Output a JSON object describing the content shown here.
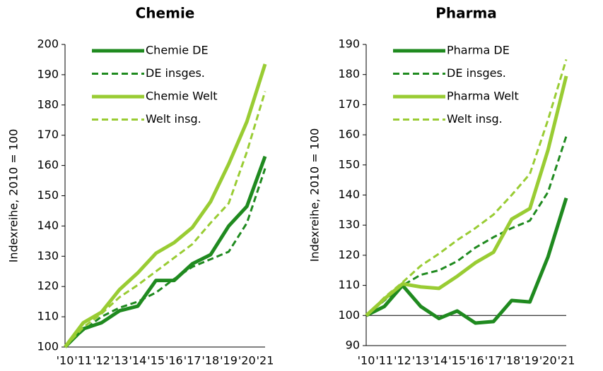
{
  "chart_data": [
    {
      "type": "line",
      "title": "Chemie",
      "ylabel": "Indexreihe, 2010 = 100",
      "categories": [
        "'10",
        "'11",
        "'12",
        "'13",
        "'14",
        "'15",
        "'16",
        "'17",
        "'18",
        "'19",
        "'20",
        "'21"
      ],
      "ylim": [
        100,
        200
      ],
      "yticks": [
        100,
        110,
        120,
        130,
        140,
        150,
        160,
        170,
        180,
        190,
        200
      ],
      "series": [
        {
          "name": "Chemie DE",
          "color": "#1f8a1f",
          "dashed": false,
          "values": [
            100,
            106,
            108,
            112,
            113.5,
            122,
            122,
            127.5,
            130.5,
            140,
            146.5,
            163
          ]
        },
        {
          "name": "DE insges.",
          "color": "#1f8a1f",
          "dashed": true,
          "values": [
            100,
            105.5,
            110,
            113,
            115,
            118,
            122.5,
            126.5,
            129,
            131.5,
            141,
            159
          ]
        },
        {
          "name": "Chemie Welt",
          "color": "#99cc33",
          "dashed": false,
          "values": [
            100,
            108,
            111.5,
            119,
            124.5,
            131,
            134.5,
            139.5,
            148,
            160.5,
            174.5,
            193.5
          ]
        },
        {
          "name": "Welt insg.",
          "color": "#99cc33",
          "dashed": true,
          "values": [
            100,
            106.5,
            111,
            116.5,
            120.5,
            125,
            129.5,
            134,
            141,
            147.5,
            164.5,
            184.5
          ]
        }
      ]
    },
    {
      "type": "line",
      "title": "Pharma",
      "ylabel": "Indexreihe, 2010 = 100",
      "categories": [
        "'10",
        "'11",
        "'12",
        "'13",
        "'14",
        "'15",
        "'16",
        "'17",
        "'18",
        "'19",
        "'20",
        "'21"
      ],
      "ylim": [
        90,
        190
      ],
      "yticks": [
        90,
        100,
        110,
        120,
        130,
        140,
        150,
        160,
        170,
        180,
        190
      ],
      "hline": 100,
      "series": [
        {
          "name": "Pharma DE",
          "color": "#1f8a1f",
          "dashed": false,
          "values": [
            100,
            103,
            110,
            103,
            99,
            101.5,
            97.5,
            98,
            105,
            104.5,
            119.5,
            139
          ]
        },
        {
          "name": "DE insges.",
          "color": "#1f8a1f",
          "dashed": true,
          "values": [
            100,
            105,
            110,
            113.5,
            115,
            118,
            122.5,
            126,
            129,
            131.5,
            141,
            159.5
          ]
        },
        {
          "name": "Pharma Welt",
          "color": "#99cc33",
          "dashed": false,
          "values": [
            100,
            105.5,
            110.5,
            109.5,
            109,
            113,
            117.5,
            121,
            132,
            135.5,
            155,
            179.5
          ]
        },
        {
          "name": "Welt insg.",
          "color": "#99cc33",
          "dashed": true,
          "values": [
            100,
            106,
            111,
            116.5,
            120.5,
            125,
            129,
            133.5,
            140,
            147,
            165,
            185
          ]
        }
      ]
    }
  ]
}
